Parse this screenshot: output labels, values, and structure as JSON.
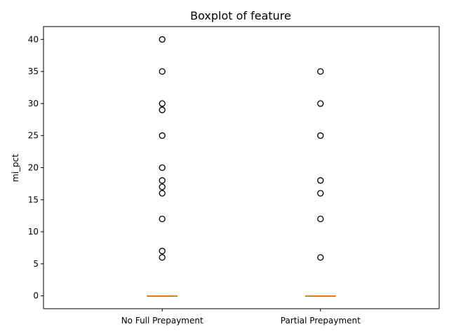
{
  "chart_data": {
    "type": "boxplot",
    "title": "Boxplot of feature",
    "xlabel": "",
    "ylabel": "mi_pct",
    "ylim": [
      -2,
      42
    ],
    "yticks": [
      0,
      5,
      10,
      15,
      20,
      25,
      30,
      35,
      40
    ],
    "categories": [
      "No Full Prepayment",
      "Partial Prepayment"
    ],
    "grid": false,
    "colors": {
      "median": "#ff7f0e",
      "box": "#000000",
      "flier": "#000000"
    },
    "boxes": [
      {
        "category": "No Full Prepayment",
        "q1": 0,
        "median": 0,
        "q3": 0,
        "whisker_low": 0,
        "whisker_high": 0,
        "outliers": [
          6,
          7,
          12,
          16,
          17,
          18,
          20,
          25,
          29,
          30,
          35,
          40
        ]
      },
      {
        "category": "Partial Prepayment",
        "q1": 0,
        "median": 0,
        "q3": 0,
        "whisker_low": 0,
        "whisker_high": 0,
        "outliers": [
          6,
          12,
          16,
          18,
          25,
          30,
          35
        ]
      }
    ]
  }
}
